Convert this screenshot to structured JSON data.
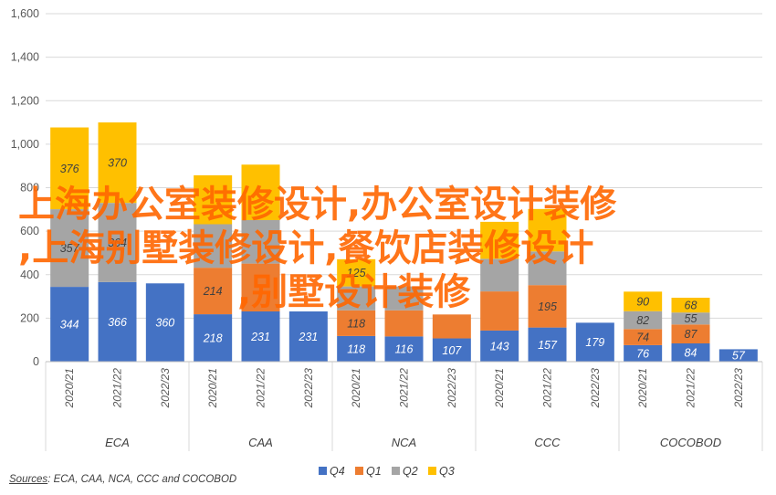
{
  "chart_data": {
    "type": "bar",
    "stacked": true,
    "ylim": [
      0,
      1600
    ],
    "yticks": [
      "0",
      "200",
      "400",
      "600",
      "800",
      "1,000",
      "1,200",
      "1,400",
      "1,600"
    ],
    "grid": true,
    "legend_position": "bottom",
    "groups": [
      {
        "name": "ECA",
        "categories": [
          "2020/21",
          "2021/22",
          "2022/23"
        ]
      },
      {
        "name": "CAA",
        "categories": [
          "2020/21",
          "2021/22",
          "2022/23"
        ]
      },
      {
        "name": "NCA",
        "categories": [
          "2020/21",
          "2021/22",
          "2022/23"
        ]
      },
      {
        "name": "CCC",
        "categories": [
          "2020/21",
          "2021/22",
          "2022/23"
        ]
      },
      {
        "name": "COCOBOD",
        "categories": [
          "2020/21",
          "2021/22",
          "2022/23"
        ]
      }
    ],
    "series": [
      {
        "name": "Q4",
        "color": "#4472C4",
        "values": [
          344,
          366,
          360,
          218,
          231,
          231,
          118,
          116,
          107,
          143,
          157,
          179,
          76,
          84,
          57
        ]
      },
      {
        "name": "Q1",
        "color": "#ED7D31",
        "values": [
          null,
          null,
          null,
          214,
          220,
          null,
          118,
          120,
          110,
          180,
          195,
          null,
          74,
          87,
          null
        ]
      },
      {
        "name": "Q2",
        "color": "#A5A5A5",
        "values": [
          357,
          364,
          null,
          200,
          200,
          null,
          110,
          110,
          null,
          150,
          155,
          null,
          82,
          55,
          null
        ]
      },
      {
        "name": "Q3",
        "color": "#FFC000",
        "values": [
          376,
          370,
          null,
          225,
          255,
          null,
          125,
          null,
          null,
          170,
          195,
          null,
          90,
          68,
          null
        ]
      }
    ],
    "data_labels": [
      [
        "344",
        "366",
        "360",
        "218",
        "231",
        "231",
        "118",
        "116",
        "107",
        "143",
        "157",
        "179",
        "76",
        "84",
        "57"
      ],
      [
        "",
        "",
        "",
        "214",
        "",
        "",
        "118",
        "",
        "",
        "",
        "195",
        "",
        "74",
        "87",
        ""
      ],
      [
        "357",
        "364",
        "",
        "",
        "",
        "",
        "",
        "",
        "",
        "",
        "",
        "",
        "82",
        "55",
        ""
      ],
      [
        "376",
        "370",
        "",
        "",
        "",
        "",
        "125",
        "",
        "",
        "",
        "",
        "",
        "90",
        "68",
        ""
      ]
    ],
    "source_label": "Sources",
    "source_text": ": ECA, CAA, NCA, CCC and COCOBOD"
  },
  "watermark_lines": [
    "上海办公室装修设计,办公室设计装修",
    ",上海别墅装修设计,餐饮店装修设计",
    ",别墅设计装修"
  ]
}
